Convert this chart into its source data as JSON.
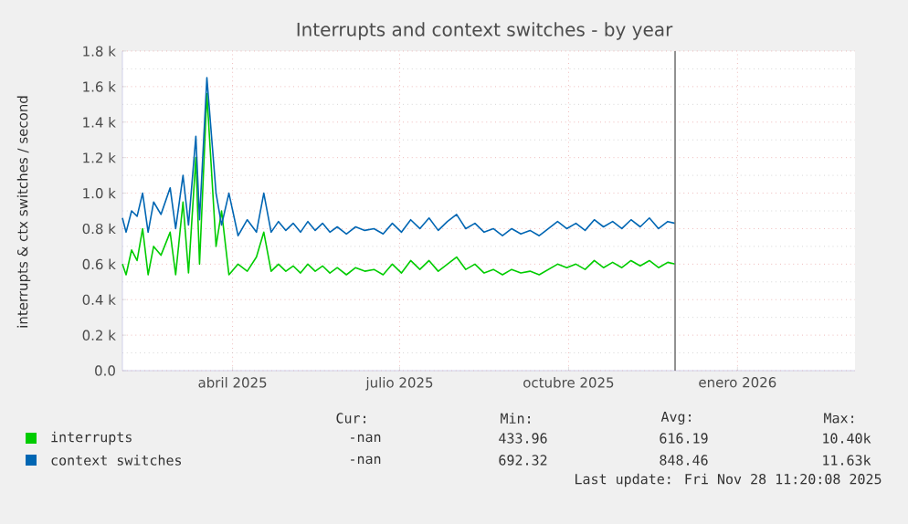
{
  "chart_data": {
    "type": "line",
    "title": "Interrupts and context switches - by year",
    "ylabel": "interrupts & ctx switches / second",
    "x": [
      "2025-01-31",
      "2025-02-02",
      "2025-02-05",
      "2025-02-08",
      "2025-02-11",
      "2025-02-14",
      "2025-02-17",
      "2025-02-21",
      "2025-02-26",
      "2025-03-01",
      "2025-03-05",
      "2025-03-08",
      "2025-03-12",
      "2025-03-14",
      "2025-03-18",
      "2025-03-23",
      "2025-03-26",
      "2025-03-30",
      "2025-04-04",
      "2025-04-09",
      "2025-04-14",
      "2025-04-18",
      "2025-04-22",
      "2025-04-26",
      "2025-04-30",
      "2025-05-04",
      "2025-05-08",
      "2025-05-12",
      "2025-05-16",
      "2025-05-20",
      "2025-05-24",
      "2025-05-28",
      "2025-06-02",
      "2025-06-07",
      "2025-06-12",
      "2025-06-17",
      "2025-06-22",
      "2025-06-27",
      "2025-07-02",
      "2025-07-07",
      "2025-07-12",
      "2025-07-17",
      "2025-07-22",
      "2025-07-27",
      "2025-08-01",
      "2025-08-06",
      "2025-08-11",
      "2025-08-16",
      "2025-08-21",
      "2025-08-26",
      "2025-08-31",
      "2025-09-05",
      "2025-09-10",
      "2025-09-15",
      "2025-09-20",
      "2025-09-25",
      "2025-09-30",
      "2025-10-05",
      "2025-10-10",
      "2025-10-15",
      "2025-10-20",
      "2025-10-25",
      "2025-10-30",
      "2025-11-04",
      "2025-11-09",
      "2025-11-14",
      "2025-11-19",
      "2025-11-24",
      "2025-11-28"
    ],
    "series": [
      {
        "name": "interrupts",
        "color": "#00cc00",
        "values": [
          600,
          540,
          680,
          620,
          800,
          540,
          700,
          650,
          780,
          540,
          950,
          550,
          1200,
          600,
          1560,
          700,
          900,
          540,
          600,
          560,
          640,
          780,
          560,
          600,
          560,
          590,
          550,
          600,
          560,
          590,
          550,
          580,
          540,
          580,
          560,
          570,
          540,
          600,
          550,
          620,
          570,
          620,
          560,
          600,
          640,
          570,
          600,
          550,
          570,
          540,
          570,
          550,
          560,
          540,
          570,
          600,
          580,
          600,
          570,
          620,
          580,
          610,
          580,
          620,
          590,
          620,
          580,
          610,
          600
        ]
      },
      {
        "name": "context switches",
        "color": "#0066b3",
        "values": [
          860,
          780,
          900,
          870,
          1000,
          780,
          950,
          880,
          1030,
          800,
          1100,
          820,
          1320,
          850,
          1650,
          1000,
          820,
          1000,
          760,
          850,
          780,
          1000,
          780,
          840,
          790,
          830,
          780,
          840,
          790,
          830,
          780,
          810,
          770,
          810,
          790,
          800,
          770,
          830,
          780,
          850,
          800,
          860,
          790,
          840,
          880,
          800,
          830,
          780,
          800,
          760,
          800,
          770,
          790,
          760,
          800,
          840,
          800,
          830,
          790,
          850,
          810,
          840,
          800,
          850,
          810,
          860,
          800,
          840,
          830
        ]
      }
    ],
    "xlim": [
      "2025-01-31",
      "2026-03-06"
    ],
    "xticks": [
      {
        "value": "2025-04-01",
        "label": "abril 2025"
      },
      {
        "value": "2025-07-01",
        "label": "julio 2025"
      },
      {
        "value": "2025-10-01",
        "label": "octubre 2025"
      },
      {
        "value": "2026-01-01",
        "label": "enero 2026"
      }
    ],
    "ylim": [
      0,
      1800
    ],
    "yticks": [
      {
        "value": 0,
        "label": "0.0"
      },
      {
        "value": 200,
        "label": "0.2 k"
      },
      {
        "value": 400,
        "label": "0.4 k"
      },
      {
        "value": 600,
        "label": "0.6 k"
      },
      {
        "value": 800,
        "label": "0.8 k"
      },
      {
        "value": 1000,
        "label": "1.0 k"
      },
      {
        "value": 1200,
        "label": "1.2 k"
      },
      {
        "value": 1400,
        "label": "1.4 k"
      },
      {
        "value": 1600,
        "label": "1.6 k"
      },
      {
        "value": 1800,
        "label": "1.8 k"
      }
    ],
    "ref_lines": [
      {
        "axis": "x",
        "value": "2025-11-28",
        "color": "#777777"
      }
    ],
    "grid": true,
    "legend": "bottom",
    "annotations": [
      "Cur:",
      "Min:",
      "Avg:",
      "Max:",
      "-nan",
      "433.96",
      "616.19",
      "10.40k",
      "-nan",
      "692.32",
      "848.46",
      "11.63k",
      "Last update: Fri Nov 28 11:20:08 2025"
    ]
  }
}
